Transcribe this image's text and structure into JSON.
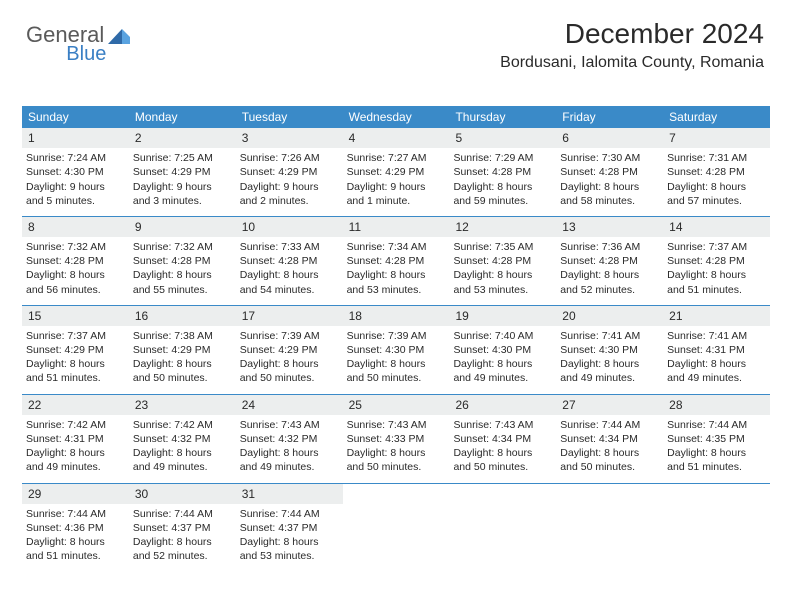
{
  "brand": {
    "part1": "General",
    "part2": "Blue"
  },
  "title": "December 2024",
  "location": "Bordusani, Ialomita County, Romania",
  "accent_color": "#3a8ac8",
  "day_names": [
    "Sunday",
    "Monday",
    "Tuesday",
    "Wednesday",
    "Thursday",
    "Friday",
    "Saturday"
  ],
  "weeks": [
    [
      {
        "n": "1",
        "sr": "7:24 AM",
        "ss": "4:30 PM",
        "dl": "9 hours and 5 minutes."
      },
      {
        "n": "2",
        "sr": "7:25 AM",
        "ss": "4:29 PM",
        "dl": "9 hours and 3 minutes."
      },
      {
        "n": "3",
        "sr": "7:26 AM",
        "ss": "4:29 PM",
        "dl": "9 hours and 2 minutes."
      },
      {
        "n": "4",
        "sr": "7:27 AM",
        "ss": "4:29 PM",
        "dl": "9 hours and 1 minute."
      },
      {
        "n": "5",
        "sr": "7:29 AM",
        "ss": "4:28 PM",
        "dl": "8 hours and 59 minutes."
      },
      {
        "n": "6",
        "sr": "7:30 AM",
        "ss": "4:28 PM",
        "dl": "8 hours and 58 minutes."
      },
      {
        "n": "7",
        "sr": "7:31 AM",
        "ss": "4:28 PM",
        "dl": "8 hours and 57 minutes."
      }
    ],
    [
      {
        "n": "8",
        "sr": "7:32 AM",
        "ss": "4:28 PM",
        "dl": "8 hours and 56 minutes."
      },
      {
        "n": "9",
        "sr": "7:32 AM",
        "ss": "4:28 PM",
        "dl": "8 hours and 55 minutes."
      },
      {
        "n": "10",
        "sr": "7:33 AM",
        "ss": "4:28 PM",
        "dl": "8 hours and 54 minutes."
      },
      {
        "n": "11",
        "sr": "7:34 AM",
        "ss": "4:28 PM",
        "dl": "8 hours and 53 minutes."
      },
      {
        "n": "12",
        "sr": "7:35 AM",
        "ss": "4:28 PM",
        "dl": "8 hours and 53 minutes."
      },
      {
        "n": "13",
        "sr": "7:36 AM",
        "ss": "4:28 PM",
        "dl": "8 hours and 52 minutes."
      },
      {
        "n": "14",
        "sr": "7:37 AM",
        "ss": "4:28 PM",
        "dl": "8 hours and 51 minutes."
      }
    ],
    [
      {
        "n": "15",
        "sr": "7:37 AM",
        "ss": "4:29 PM",
        "dl": "8 hours and 51 minutes."
      },
      {
        "n": "16",
        "sr": "7:38 AM",
        "ss": "4:29 PM",
        "dl": "8 hours and 50 minutes."
      },
      {
        "n": "17",
        "sr": "7:39 AM",
        "ss": "4:29 PM",
        "dl": "8 hours and 50 minutes."
      },
      {
        "n": "18",
        "sr": "7:39 AM",
        "ss": "4:30 PM",
        "dl": "8 hours and 50 minutes."
      },
      {
        "n": "19",
        "sr": "7:40 AM",
        "ss": "4:30 PM",
        "dl": "8 hours and 49 minutes."
      },
      {
        "n": "20",
        "sr": "7:41 AM",
        "ss": "4:30 PM",
        "dl": "8 hours and 49 minutes."
      },
      {
        "n": "21",
        "sr": "7:41 AM",
        "ss": "4:31 PM",
        "dl": "8 hours and 49 minutes."
      }
    ],
    [
      {
        "n": "22",
        "sr": "7:42 AM",
        "ss": "4:31 PM",
        "dl": "8 hours and 49 minutes."
      },
      {
        "n": "23",
        "sr": "7:42 AM",
        "ss": "4:32 PM",
        "dl": "8 hours and 49 minutes."
      },
      {
        "n": "24",
        "sr": "7:43 AM",
        "ss": "4:32 PM",
        "dl": "8 hours and 49 minutes."
      },
      {
        "n": "25",
        "sr": "7:43 AM",
        "ss": "4:33 PM",
        "dl": "8 hours and 50 minutes."
      },
      {
        "n": "26",
        "sr": "7:43 AM",
        "ss": "4:34 PM",
        "dl": "8 hours and 50 minutes."
      },
      {
        "n": "27",
        "sr": "7:44 AM",
        "ss": "4:34 PM",
        "dl": "8 hours and 50 minutes."
      },
      {
        "n": "28",
        "sr": "7:44 AM",
        "ss": "4:35 PM",
        "dl": "8 hours and 51 minutes."
      }
    ],
    [
      {
        "n": "29",
        "sr": "7:44 AM",
        "ss": "4:36 PM",
        "dl": "8 hours and 51 minutes."
      },
      {
        "n": "30",
        "sr": "7:44 AM",
        "ss": "4:37 PM",
        "dl": "8 hours and 52 minutes."
      },
      {
        "n": "31",
        "sr": "7:44 AM",
        "ss": "4:37 PM",
        "dl": "8 hours and 53 minutes."
      },
      null,
      null,
      null,
      null
    ]
  ],
  "labels": {
    "sunrise": "Sunrise:",
    "sunset": "Sunset:",
    "daylight": "Daylight:"
  }
}
